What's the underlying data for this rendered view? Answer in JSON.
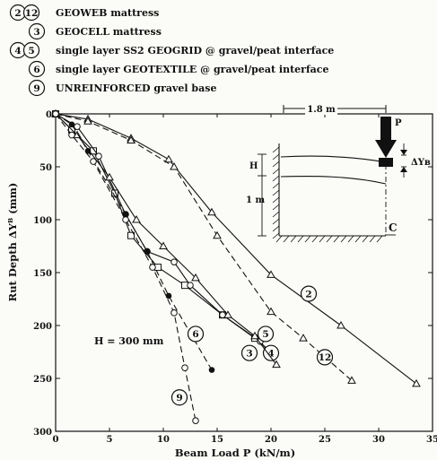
{
  "chart_data": {
    "type": "line",
    "xlabel": "Beam Load P (kN/m)",
    "ylabel": "Rut Depth ΔYᴮ (mm)",
    "xlim": [
      0,
      35
    ],
    "ylim": [
      0,
      300
    ],
    "y_inverted": true,
    "xticks": [
      "0",
      "5",
      "10",
      "15",
      "20",
      "25",
      "30",
      "35"
    ],
    "yticks": [
      "0",
      "50",
      "100",
      "150",
      "200",
      "250",
      "300"
    ],
    "annotation": "H = 300 mm",
    "legend": [
      {
        "marks": [
          "2",
          "12"
        ],
        "label": "GEOWEB mattress"
      },
      {
        "marks": [
          "3"
        ],
        "label": "GEOCELL mattress"
      },
      {
        "marks": [
          "4",
          "5"
        ],
        "label": "single layer SS2 GEOGRID @ gravel/peat interface"
      },
      {
        "marks": [
          "6"
        ],
        "label": "single layer GEOTEXTILE @ gravel/peat interface"
      },
      {
        "marks": [
          "9"
        ],
        "label": "UNREINFORCED gravel base"
      }
    ],
    "series": [
      {
        "name": "2",
        "marker": "triangle",
        "dash": "solid",
        "label_at": [
          23.5,
          170
        ],
        "points": [
          [
            0,
            0
          ],
          [
            3,
            5
          ],
          [
            7,
            23
          ],
          [
            10.5,
            43
          ],
          [
            14.5,
            93
          ],
          [
            20,
            152
          ],
          [
            26.5,
            200
          ],
          [
            33.5,
            255
          ]
        ]
      },
      {
        "name": "12",
        "marker": "triangle",
        "dash": "dashed",
        "label_at": [
          25,
          230
        ],
        "points": [
          [
            0,
            0
          ],
          [
            3,
            7
          ],
          [
            7,
            25
          ],
          [
            11,
            50
          ],
          [
            15,
            115
          ],
          [
            20,
            187
          ],
          [
            23,
            212
          ],
          [
            27.5,
            252
          ]
        ]
      },
      {
        "name": "3",
        "marker": "square",
        "dash": "solid",
        "label_at": [
          18,
          226
        ],
        "points": [
          [
            0,
            0
          ],
          [
            1.5,
            15
          ],
          [
            3.5,
            35
          ],
          [
            5.5,
            75
          ],
          [
            7,
            115
          ],
          [
            9.5,
            145
          ],
          [
            12,
            162
          ],
          [
            15.5,
            190
          ],
          [
            18.5,
            212
          ],
          [
            20,
            225
          ]
        ]
      },
      {
        "name": "4",
        "marker": "circle",
        "dash": "solid",
        "label_at": [
          20,
          226
        ],
        "points": [
          [
            0,
            0
          ],
          [
            2,
            12
          ],
          [
            4,
            40
          ],
          [
            6.5,
            95
          ],
          [
            8.5,
            130
          ],
          [
            11,
            140
          ],
          [
            12.5,
            162
          ],
          [
            15.5,
            190
          ],
          [
            19,
            215
          ],
          [
            20,
            228
          ]
        ]
      },
      {
        "name": "5",
        "marker": "triangle",
        "dash": "solid",
        "label_at": [
          19.5,
          208
        ],
        "points": [
          [
            0,
            0
          ],
          [
            2,
            20
          ],
          [
            5,
            60
          ],
          [
            7.5,
            100
          ],
          [
            10,
            125
          ],
          [
            13,
            155
          ],
          [
            16,
            190
          ],
          [
            18.5,
            210
          ],
          [
            20.5,
            237
          ]
        ]
      },
      {
        "name": "6",
        "marker": "dot",
        "dash": "dashed",
        "label_at": [
          13,
          208
        ],
        "points": [
          [
            0,
            0
          ],
          [
            1.5,
            10
          ],
          [
            3,
            35
          ],
          [
            6.5,
            95
          ],
          [
            8.5,
            130
          ],
          [
            10.5,
            172
          ],
          [
            14.5,
            242
          ]
        ]
      },
      {
        "name": "9",
        "marker": "circle",
        "dash": "dashed",
        "label_at": [
          11.5,
          268
        ],
        "points": [
          [
            0,
            0
          ],
          [
            1.5,
            20
          ],
          [
            3.5,
            45
          ],
          [
            6.5,
            100
          ],
          [
            9,
            145
          ],
          [
            11,
            188
          ],
          [
            12,
            240
          ],
          [
            13,
            290
          ]
        ]
      }
    ],
    "inset": {
      "span_label": "1.8 m",
      "load_label": "P",
      "height_label_h": "H",
      "height_label_m": "1 m",
      "rut_label": "ΔYʙ",
      "centerline_label": "C"
    }
  }
}
